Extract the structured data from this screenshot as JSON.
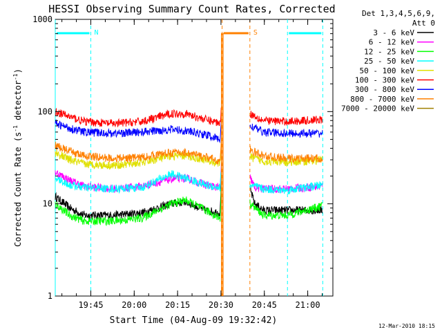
{
  "chart_data": {
    "type": "line",
    "title": "HESSI Observing Summary Count Rates, Corrected",
    "xlabel": "Start Time (04-Aug-09 19:32:42)",
    "ylabel": "Corrected Count Rate (s⁻¹ detector⁻¹)",
    "ylabel_parts": {
      "a": "Corrected Count Rate (s",
      "sup1": "-1",
      "b": " detector",
      "sup2": "-1",
      "c": ")"
    },
    "y_scale": "log",
    "ylim": [
      1,
      1000
    ],
    "xlim_minutes": [
      0,
      96
    ],
    "x_tick_labels": [
      "19:45",
      "20:00",
      "20:15",
      "20:30",
      "20:45",
      "21:00"
    ],
    "x_tick_minutes": [
      12.3,
      27.3,
      42.3,
      57.3,
      72.3,
      87.3
    ],
    "y_tick_labels": [
      "1",
      "10",
      "100",
      "1000"
    ],
    "y_tick_values": [
      1,
      10,
      100,
      1000
    ],
    "legend_title_lines": [
      "Det 1,3,4,5,6,9,",
      "Att 0"
    ],
    "legend_position": "top-right, outside plot",
    "timestamp": "12-Mar-2010 18:15",
    "flags": [
      {
        "label": "N",
        "color": "#00ffff",
        "start": 0,
        "end": 12.3
      },
      {
        "label": "",
        "color": "#00ffff",
        "start": 80.3,
        "end": 92.5
      },
      {
        "label": "S",
        "color": "#ff8000",
        "start": 57.7,
        "end": 67.3
      }
    ],
    "gaps_minutes": [
      [
        57.7,
        67.3
      ]
    ],
    "series": [
      {
        "name": "3 - 6 keV",
        "color": "#000000",
        "values": [
          [
            0,
            12
          ],
          [
            5,
            9
          ],
          [
            10,
            7.5
          ],
          [
            20,
            7.5
          ],
          [
            30,
            8
          ],
          [
            40,
            10
          ],
          [
            45,
            10.5
          ],
          [
            52,
            8.5
          ],
          [
            57,
            8
          ],
          [
            57.6,
            28
          ],
          [
            67.5,
            14
          ],
          [
            69,
            10
          ],
          [
            72,
            8.5
          ],
          [
            80,
            8.5
          ],
          [
            92.5,
            8.5
          ]
        ]
      },
      {
        "name": "6 - 12 keV",
        "color": "#ff00ff",
        "values": [
          [
            0,
            22
          ],
          [
            5,
            18
          ],
          [
            10,
            15.5
          ],
          [
            20,
            14.5
          ],
          [
            30,
            15.5
          ],
          [
            40,
            18.5
          ],
          [
            45,
            19
          ],
          [
            52,
            16
          ],
          [
            57,
            15
          ],
          [
            57.6,
            34
          ],
          [
            67.5,
            19
          ],
          [
            69,
            15
          ],
          [
            72,
            14.5
          ],
          [
            80,
            14.5
          ],
          [
            92.5,
            15.5
          ]
        ]
      },
      {
        "name": "12 - 25 keV",
        "color": "#00ff00",
        "values": [
          [
            0,
            10
          ],
          [
            5,
            7.5
          ],
          [
            10,
            6.5
          ],
          [
            20,
            6.5
          ],
          [
            30,
            7
          ],
          [
            40,
            10
          ],
          [
            45,
            11
          ],
          [
            52,
            8.5
          ],
          [
            57,
            7
          ],
          [
            57.6,
            20
          ],
          [
            67.5,
            10
          ],
          [
            72,
            7.5
          ],
          [
            80,
            7.5
          ],
          [
            92.5,
            9.5
          ]
        ]
      },
      {
        "name": "25 - 50 keV",
        "color": "#00ffff",
        "values": [
          [
            0,
            19
          ],
          [
            5,
            16
          ],
          [
            10,
            15
          ],
          [
            20,
            14.5
          ],
          [
            30,
            15
          ],
          [
            40,
            21
          ],
          [
            45,
            19
          ],
          [
            52,
            16
          ],
          [
            57,
            15
          ],
          [
            57.6,
            30
          ],
          [
            67.5,
            16
          ],
          [
            72,
            14.5
          ],
          [
            80,
            14
          ],
          [
            92.5,
            16
          ]
        ]
      },
      {
        "name": "50 - 100 keV",
        "color": "#e0e000",
        "values": [
          [
            0,
            36
          ],
          [
            5,
            30
          ],
          [
            10,
            27
          ],
          [
            20,
            26
          ],
          [
            30,
            28
          ],
          [
            40,
            33
          ],
          [
            45,
            33
          ],
          [
            52,
            30
          ],
          [
            57,
            27
          ],
          [
            57.6,
            55
          ],
          [
            67.5,
            32
          ],
          [
            72,
            29
          ],
          [
            80,
            28
          ],
          [
            92.5,
            30
          ]
        ]
      },
      {
        "name": "100 - 300 keV",
        "color": "#ff0000",
        "values": [
          [
            0,
            100
          ],
          [
            5,
            88
          ],
          [
            10,
            78
          ],
          [
            20,
            74
          ],
          [
            30,
            78
          ],
          [
            40,
            95
          ],
          [
            45,
            95
          ],
          [
            52,
            82
          ],
          [
            57,
            75
          ],
          [
            57.6,
            135
          ],
          [
            67.5,
            95
          ],
          [
            72,
            80
          ],
          [
            80,
            78
          ],
          [
            92.5,
            82
          ]
        ]
      },
      {
        "name": "300 - 800 keV",
        "color": "#0000ff",
        "values": [
          [
            0,
            74
          ],
          [
            5,
            66
          ],
          [
            10,
            60
          ],
          [
            20,
            58
          ],
          [
            30,
            60
          ],
          [
            40,
            64
          ],
          [
            45,
            62
          ],
          [
            52,
            56
          ],
          [
            57,
            50
          ],
          [
            57.6,
            90
          ],
          [
            67.5,
            70
          ],
          [
            72,
            60
          ],
          [
            80,
            58
          ],
          [
            92.5,
            58
          ]
        ]
      },
      {
        "name": "800 - 7000 keV",
        "color": "#ff8000",
        "values": [
          [
            0,
            43
          ],
          [
            5,
            37
          ],
          [
            10,
            33
          ],
          [
            20,
            31
          ],
          [
            30,
            32
          ],
          [
            40,
            36
          ],
          [
            45,
            36
          ],
          [
            52,
            32
          ],
          [
            57,
            29
          ],
          [
            57.6,
            60
          ],
          [
            67.5,
            38
          ],
          [
            72,
            33
          ],
          [
            80,
            31
          ],
          [
            92.5,
            31
          ]
        ]
      },
      {
        "name": "7000 - 20000 keV",
        "color": "#a08000",
        "values": [
          [
            57.6,
            2.6
          ],
          [
            57.7,
            3.2
          ]
        ]
      }
    ]
  }
}
